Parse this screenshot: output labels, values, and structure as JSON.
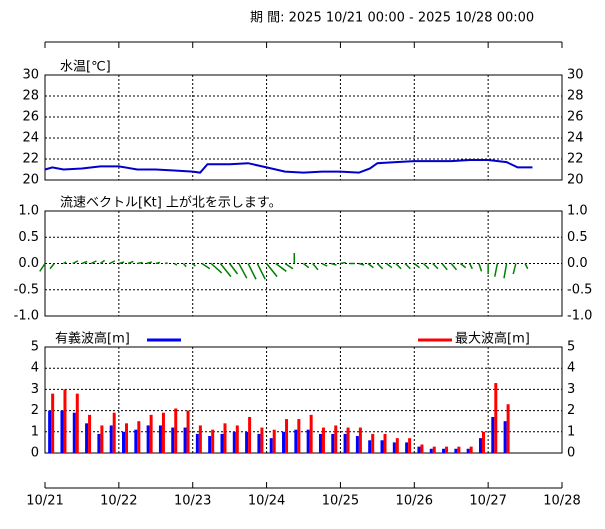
{
  "header": {
    "period": "期 間: 2025 10/21 00:00 - 2025 10/28 00:00"
  },
  "chart_data": [
    {
      "type": "line",
      "title": "水温[℃]",
      "xlim": [
        0,
        7
      ],
      "xticks": [
        0,
        1,
        2,
        3,
        4,
        5,
        6,
        7
      ],
      "ylim": [
        20,
        30
      ],
      "yticks": [
        20,
        22,
        24,
        26,
        28,
        30
      ],
      "grid": true,
      "series": [
        {
          "name": null,
          "color": "#0000cc",
          "x": [
            0,
            0.1,
            0.25,
            0.5,
            0.75,
            1.0,
            1.25,
            1.5,
            1.75,
            2.0,
            2.1,
            2.2,
            2.5,
            2.75,
            3.0,
            3.25,
            3.5,
            3.75,
            4.0,
            4.25,
            4.4,
            4.5,
            4.75,
            5.0,
            5.25,
            5.5,
            5.75,
            6.0,
            6.25,
            6.4,
            6.6
          ],
          "values": [
            21.0,
            21.2,
            21.0,
            21.1,
            21.3,
            21.3,
            21.0,
            21.0,
            20.9,
            20.8,
            20.7,
            21.5,
            21.5,
            21.6,
            21.2,
            20.8,
            20.7,
            20.8,
            20.8,
            20.7,
            21.1,
            21.6,
            21.7,
            21.8,
            21.8,
            21.8,
            21.9,
            21.9,
            21.7,
            21.2,
            21.2
          ]
        }
      ]
    },
    {
      "type": "vector",
      "title": "流速ベクトル[Kt]  上が北を示します。",
      "xlim": [
        0,
        7
      ],
      "xticks": [
        0,
        1,
        2,
        3,
        4,
        5,
        6,
        7
      ],
      "ylim": [
        -1.0,
        1.0
      ],
      "yticks": [
        {
          "value": -1.0,
          "label": "-1.0"
        },
        {
          "value": -0.5,
          "label": "-0.5"
        },
        {
          "value": 0,
          "label": "0.0"
        },
        {
          "value": 0.5,
          "label": "0.5"
        },
        {
          "value": 1.0,
          "label": "1.0"
        }
      ],
      "grid": true,
      "color": "#008000",
      "x": [
        0,
        0.125,
        0.25,
        0.375,
        0.5,
        0.625,
        0.75,
        0.875,
        1.0,
        1.125,
        1.25,
        1.375,
        1.5,
        1.625,
        1.75,
        1.875,
        2.0,
        2.125,
        2.25,
        2.375,
        2.5,
        2.625,
        2.75,
        2.875,
        3.0,
        3.125,
        3.25,
        3.375,
        3.5,
        3.625,
        3.75,
        3.875,
        4.0,
        4.125,
        4.25,
        4.375,
        4.5,
        4.625,
        4.75,
        4.875,
        5.0,
        5.125,
        5.25,
        5.375,
        5.5,
        5.625,
        5.75,
        5.875,
        6.0,
        6.125,
        6.25,
        6.375,
        6.5
      ],
      "north": [
        -0.15,
        -0.1,
        0.03,
        0.05,
        0.04,
        0.05,
        0.06,
        0.05,
        0.03,
        0.04,
        0.02,
        0.03,
        0.02,
        0.01,
        -0.03,
        -0.06,
        -0.05,
        -0.1,
        -0.18,
        -0.25,
        -0.2,
        -0.28,
        -0.3,
        -0.3,
        -0.25,
        -0.15,
        -0.1,
        0.2,
        -0.08,
        -0.12,
        -0.05,
        -0.03,
        0.02,
        0,
        -0.03,
        -0.08,
        -0.1,
        -0.08,
        -0.1,
        -0.1,
        -0.08,
        -0.1,
        -0.1,
        -0.12,
        -0.12,
        -0.08,
        -0.1,
        -0.15,
        -0.2,
        -0.25,
        -0.28,
        -0.2,
        -0.1
      ],
      "east": [
        -0.1,
        -0.08,
        0.05,
        0.1,
        0.1,
        0.1,
        0.08,
        0.1,
        0.1,
        0.1,
        0.1,
        0.1,
        0.08,
        0.05,
        0.05,
        0.05,
        0.05,
        0.15,
        0.2,
        0.2,
        0.15,
        0.15,
        0.15,
        0.15,
        0.2,
        0.2,
        0.15,
        0,
        0.1,
        0.1,
        0.1,
        0.1,
        0.1,
        0.1,
        0.1,
        0.1,
        0.1,
        0.1,
        0.1,
        0.1,
        0.1,
        0.1,
        0.1,
        0.1,
        0.1,
        0.1,
        0.05,
        0.05,
        0,
        -0.05,
        -0.05,
        -0.05,
        0.05
      ]
    },
    {
      "type": "bar",
      "title": null,
      "xlim": [
        0,
        7
      ],
      "xticks": [
        {
          "value": 0,
          "label": "10/21"
        },
        {
          "value": 1,
          "label": "10/22"
        },
        {
          "value": 2,
          "label": "10/23"
        },
        {
          "value": 3,
          "label": "10/24"
        },
        {
          "value": 4,
          "label": "10/25"
        },
        {
          "value": 5,
          "label": "10/26"
        },
        {
          "value": 6,
          "label": "10/27"
        },
        {
          "value": 7,
          "label": "10/28"
        }
      ],
      "ylim": [
        0,
        5
      ],
      "yticks": [
        0,
        1,
        2,
        3,
        4,
        5
      ],
      "grid": true,
      "x": [
        0.0833,
        0.25,
        0.4167,
        0.5833,
        0.75,
        0.9167,
        1.0833,
        1.25,
        1.4167,
        1.5833,
        1.75,
        1.9167,
        2.0833,
        2.25,
        2.4167,
        2.5833,
        2.75,
        2.9167,
        3.0833,
        3.25,
        3.4167,
        3.5833,
        3.75,
        3.9167,
        4.0833,
        4.25,
        4.4167,
        4.5833,
        4.75,
        4.9167,
        5.0833,
        5.25,
        5.4167,
        5.5833,
        5.75,
        5.9167,
        6.0833,
        6.25
      ],
      "series": [
        {
          "name": "有義波高[m]",
          "color": "#0000ff",
          "values": [
            2.0,
            2.0,
            1.9,
            1.4,
            0.9,
            1.3,
            1.0,
            1.1,
            1.3,
            1.3,
            1.2,
            1.2,
            0.9,
            0.8,
            0.9,
            1.0,
            1.0,
            0.9,
            0.7,
            1.0,
            1.1,
            1.1,
            0.9,
            0.9,
            0.9,
            0.8,
            0.6,
            0.6,
            0.5,
            0.5,
            0.3,
            0.2,
            0.2,
            0.2,
            0.2,
            0.7,
            1.7,
            1.5
          ]
        },
        {
          "name": "最大波高[m]",
          "color": "#ff0000",
          "values": [
            2.8,
            3.0,
            2.8,
            1.8,
            1.3,
            1.9,
            1.4,
            1.5,
            1.8,
            1.9,
            2.1,
            2.0,
            1.3,
            1.1,
            1.4,
            1.3,
            1.7,
            1.2,
            1.1,
            1.6,
            1.6,
            1.8,
            1.2,
            1.3,
            1.2,
            1.2,
            0.9,
            0.9,
            0.7,
            0.7,
            0.4,
            0.3,
            0.3,
            0.3,
            0.3,
            1.0,
            3.3,
            2.3
          ]
        }
      ]
    }
  ]
}
